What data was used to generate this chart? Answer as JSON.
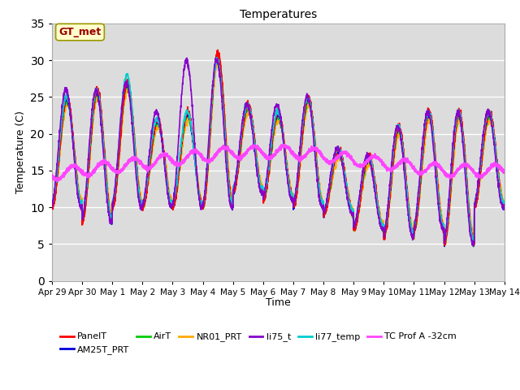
{
  "title": "Temperatures",
  "xlabel": "Time",
  "ylabel": "Temperature (C)",
  "ylim": [
    0,
    35
  ],
  "yticks": [
    0,
    5,
    10,
    15,
    20,
    25,
    30,
    35
  ],
  "xlim_days": [
    0,
    15
  ],
  "x_tick_labels": [
    "Apr 29",
    "Apr 30",
    "May 1",
    "May 2",
    "May 3",
    "May 4",
    "May 5",
    "May 6",
    "May 7",
    "May 8",
    "May 9",
    "May 10",
    "May 11",
    "May 12",
    "May 13",
    "May 14"
  ],
  "x_tick_positions": [
    0,
    1,
    2,
    3,
    4,
    5,
    6,
    7,
    8,
    9,
    10,
    11,
    12,
    13,
    14,
    15
  ],
  "background_color": "#dcdcdc",
  "figure_background": "#ffffff",
  "annotation_box_text": "GT_met",
  "annotation_box_color": "#ffffcc",
  "annotation_box_edge": "#999900",
  "annotation_text_color": "#990000",
  "series": {
    "PanelT": {
      "color": "#ff0000",
      "lw": 1.2
    },
    "AM25T_PRT": {
      "color": "#0000dd",
      "lw": 1.2
    },
    "AirT": {
      "color": "#00cc00",
      "lw": 1.2
    },
    "NR01_PRT": {
      "color": "#ffaa00",
      "lw": 1.2
    },
    "li75_t": {
      "color": "#8800cc",
      "lw": 1.2
    },
    "li77_temp": {
      "color": "#00cccc",
      "lw": 1.2
    },
    "TC Prof A -32cm": {
      "color": "#ff44ff",
      "lw": 1.8
    }
  },
  "day_peaks": [
    25,
    26,
    27,
    22,
    23,
    31,
    24,
    23,
    25,
    18,
    17,
    21,
    23,
    23,
    23
  ],
  "day_troughs": [
    10,
    8,
    10,
    10,
    10,
    10,
    12,
    11,
    10,
    9,
    7,
    6,
    7,
    5,
    10
  ],
  "li75_extra_peaks": [
    26,
    26,
    27,
    23,
    30,
    30,
    24,
    24,
    25,
    18,
    17,
    21,
    23,
    23,
    23
  ],
  "li77_extra_peaks": [
    25,
    26,
    28,
    22,
    23,
    30,
    24,
    23,
    25,
    18,
    17,
    21,
    23,
    23,
    23
  ],
  "tc_prof_values": [
    14.5,
    15.0,
    15.5,
    16.0,
    16.5,
    17.0,
    17.5,
    17.5,
    17.5,
    17.0,
    16.5,
    16.0,
    15.5,
    15.0,
    15.0
  ]
}
